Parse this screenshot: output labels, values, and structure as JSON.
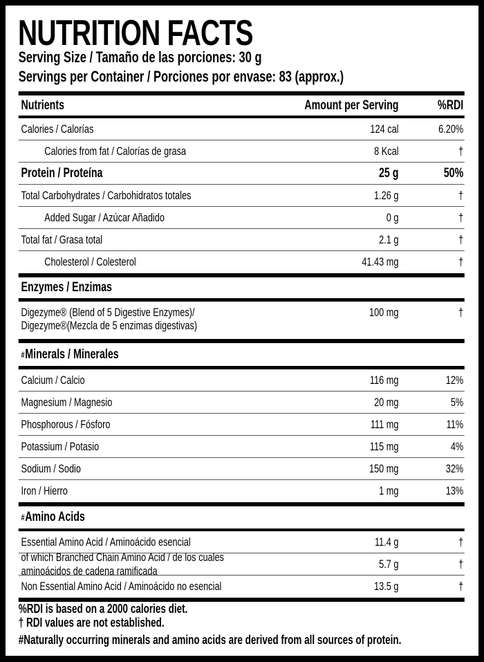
{
  "title": "NUTRITION FACTS",
  "serving_size": "Serving Size / Tamaño de las porciones: 30 g",
  "servings_per_container": "Servings per Container / Porciones por envase: 83 (approx.)",
  "header": {
    "nutrients": "Nutrients",
    "amount": "Amount per Serving",
    "rdi": "%RDI"
  },
  "main_rows": [
    {
      "name": "Calories / Calorías",
      "amount": "124 cal",
      "rdi": "6.20%"
    },
    {
      "name": "Calories from fat / Calorías de grasa",
      "amount": "8 Kcal",
      "rdi": "†",
      "indent": true
    },
    {
      "name": "Protein / Proteína",
      "amount": "25 g",
      "rdi": "50%",
      "bold": true
    },
    {
      "name": "Total Carbohydrates / Carbohidratos totales",
      "amount": "1.26 g",
      "rdi": "†"
    },
    {
      "name": "Added Sugar / Azúcar Añadido",
      "amount": "0 g",
      "rdi": "†",
      "indent": true
    },
    {
      "name": "Total fat / Grasa total",
      "amount": "2.1 g",
      "rdi": "†"
    },
    {
      "name": "Cholesterol / Colesterol",
      "amount": "41.43 mg",
      "rdi": "†",
      "indent": true
    }
  ],
  "enzymes": {
    "heading": "Enzymes / Enzimas",
    "row": {
      "name_line1": "Digezyme® (Blend of 5 Digestive Enzymes)/",
      "name_line2": "Digezyme®(Mezcla de 5 enzimas digestivas)",
      "amount": "100 mg",
      "rdi": "†"
    }
  },
  "minerals": {
    "marker": "#",
    "heading": "Minerals / Minerales",
    "rows": [
      {
        "name": "Calcium / Calcio",
        "amount": "116 mg",
        "rdi": "12%"
      },
      {
        "name": "Magnesium / Magnesio",
        "amount": "20 mg",
        "rdi": "5%"
      },
      {
        "name": "Phosphorous / Fósforo",
        "amount": "111 mg",
        "rdi": "11%"
      },
      {
        "name": "Potassium / Potasio",
        "amount": "115 mg",
        "rdi": "4%"
      },
      {
        "name": "Sodium / Sodio",
        "amount": "150 mg",
        "rdi": "32%"
      },
      {
        "name": "Iron / Hierro",
        "amount": "1 mg",
        "rdi": "13%"
      }
    ]
  },
  "amino": {
    "marker": "#",
    "heading": "Amino Acids",
    "rows": [
      {
        "name": "Essential Amino Acid / Aminoácido esencial",
        "amount": "11.4 g",
        "rdi": "†"
      },
      {
        "name": "of which Branched Chain Amino Acid / de los cuales aminoácidos de cadena ramificada",
        "amount": "5.7 g",
        "rdi": "†"
      },
      {
        "name": "Non Essential Amino Acid / Aminoácido no esencial",
        "amount": "13.5 g",
        "rdi": "†"
      }
    ]
  },
  "footnotes": [
    "%RDI is based on a 2000 calories diet.",
    "† RDI values are not established.",
    "#Naturally occurring minerals and amino acids are derived from all sources of protein."
  ]
}
